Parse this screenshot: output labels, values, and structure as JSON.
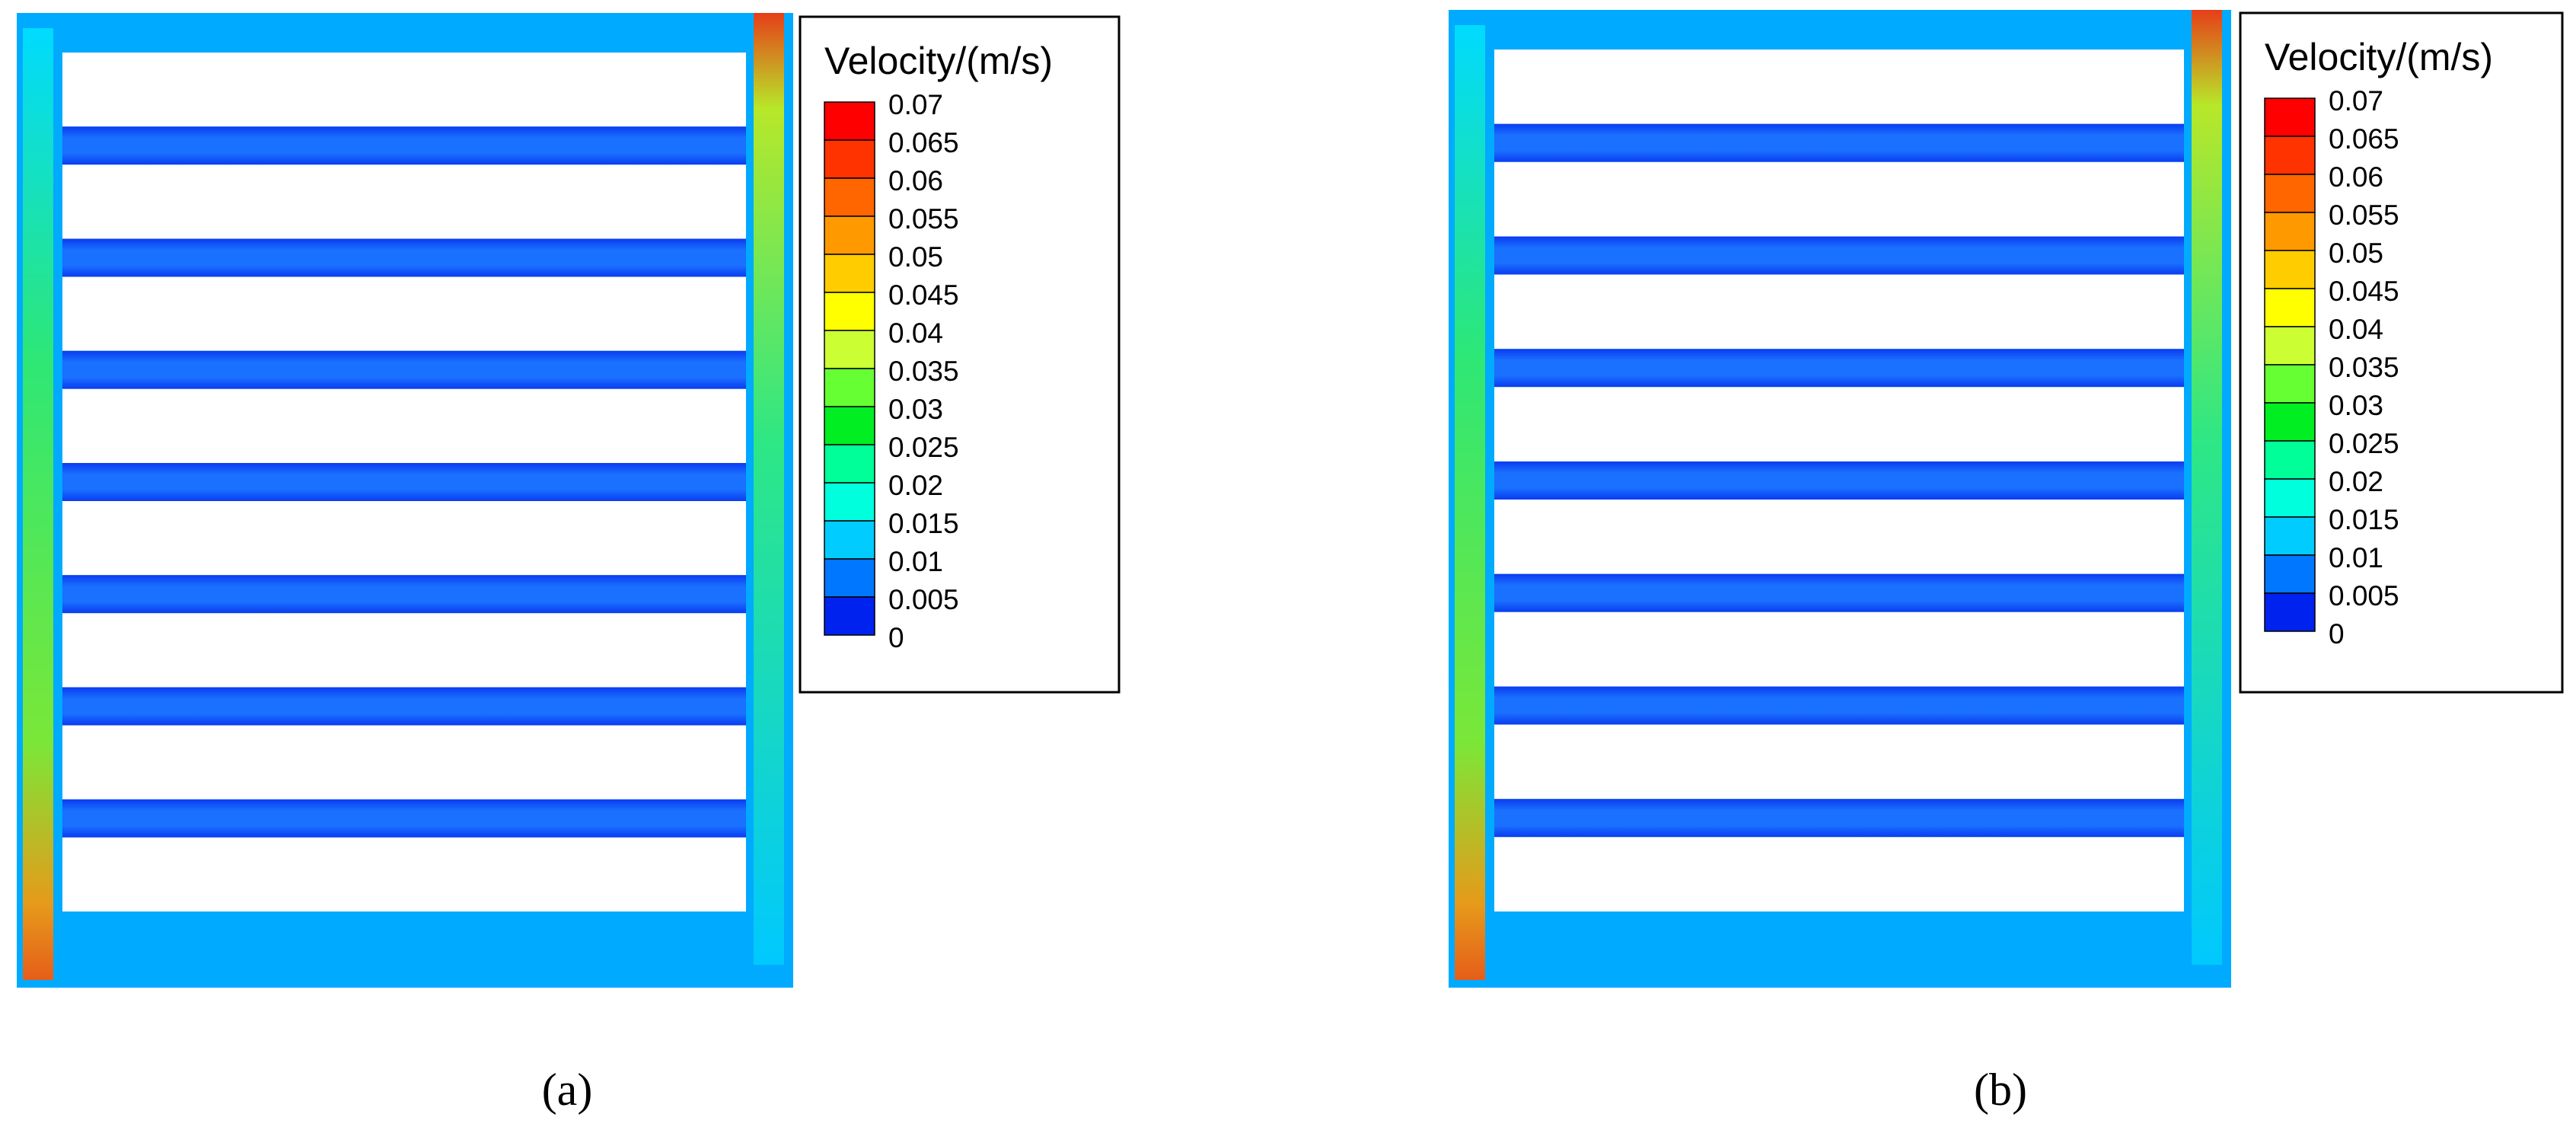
{
  "panels": [
    {
      "caption": "(a)",
      "legend": {
        "title": "Velocity/(m/s)",
        "levels": [
          0.07,
          0.065,
          0.06,
          0.055,
          0.05,
          0.045,
          0.04,
          0.035,
          0.03,
          0.025,
          0.02,
          0.015,
          0.01,
          0.005,
          0
        ],
        "colors": [
          "#ff0000",
          "#ff3300",
          "#ff6600",
          "#ff9900",
          "#ffcc00",
          "#ffff00",
          "#ccff33",
          "#66ff33",
          "#00ee22",
          "#00ff99",
          "#00ffdd",
          "#00ccff",
          "#0077ff",
          "#0022ee"
        ]
      }
    },
    {
      "caption": "(b)",
      "legend": {
        "title": "Velocity/(m/s)",
        "levels": [
          0.07,
          0.065,
          0.06,
          0.055,
          0.05,
          0.045,
          0.04,
          0.035,
          0.03,
          0.025,
          0.02,
          0.015,
          0.01,
          0.005,
          0
        ],
        "colors": [
          "#ff0000",
          "#ff3300",
          "#ff6600",
          "#ff9900",
          "#ffcc00",
          "#ffff00",
          "#ccff33",
          "#66ff33",
          "#00ee22",
          "#00ff99",
          "#00ffdd",
          "#00ccff",
          "#0077ff",
          "#0022ee"
        ]
      }
    }
  ]
}
